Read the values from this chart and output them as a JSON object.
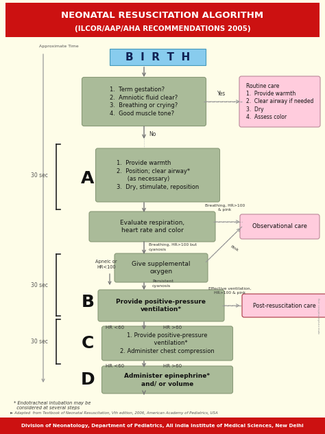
{
  "title_line1": "NEONATAL RESUSCITATION ALGORITHM",
  "title_line2": "(ILCOR/AAP/AHA RECOMMENDATIONS 2005)",
  "bg_color": "#FEFDE8",
  "header_bg": "#CC1111",
  "header_text_color": "#FFFFFF",
  "footer_bg": "#CC1111",
  "footer_text": "Division of Neonatology, Department of Pediatrics, All India Institute of Medical Sciences, New Delhi",
  "footer_text_color": "#FFFFFF",
  "birth_bg": "#88CCEE",
  "birth_text": "B  I  R  T  H",
  "green_box_bg": "#AABB99",
  "green_box_border": "#889977",
  "pink_box_bg": "#FFCCDD",
  "pink_box_border": "#BB8899",
  "pink_post_border": "#AA3344",
  "arrow_color": "#777777",
  "dashed_color": "#999999",
  "label_color": "#222222",
  "small_text_color": "#333333",
  "bracket_color": "#222222"
}
